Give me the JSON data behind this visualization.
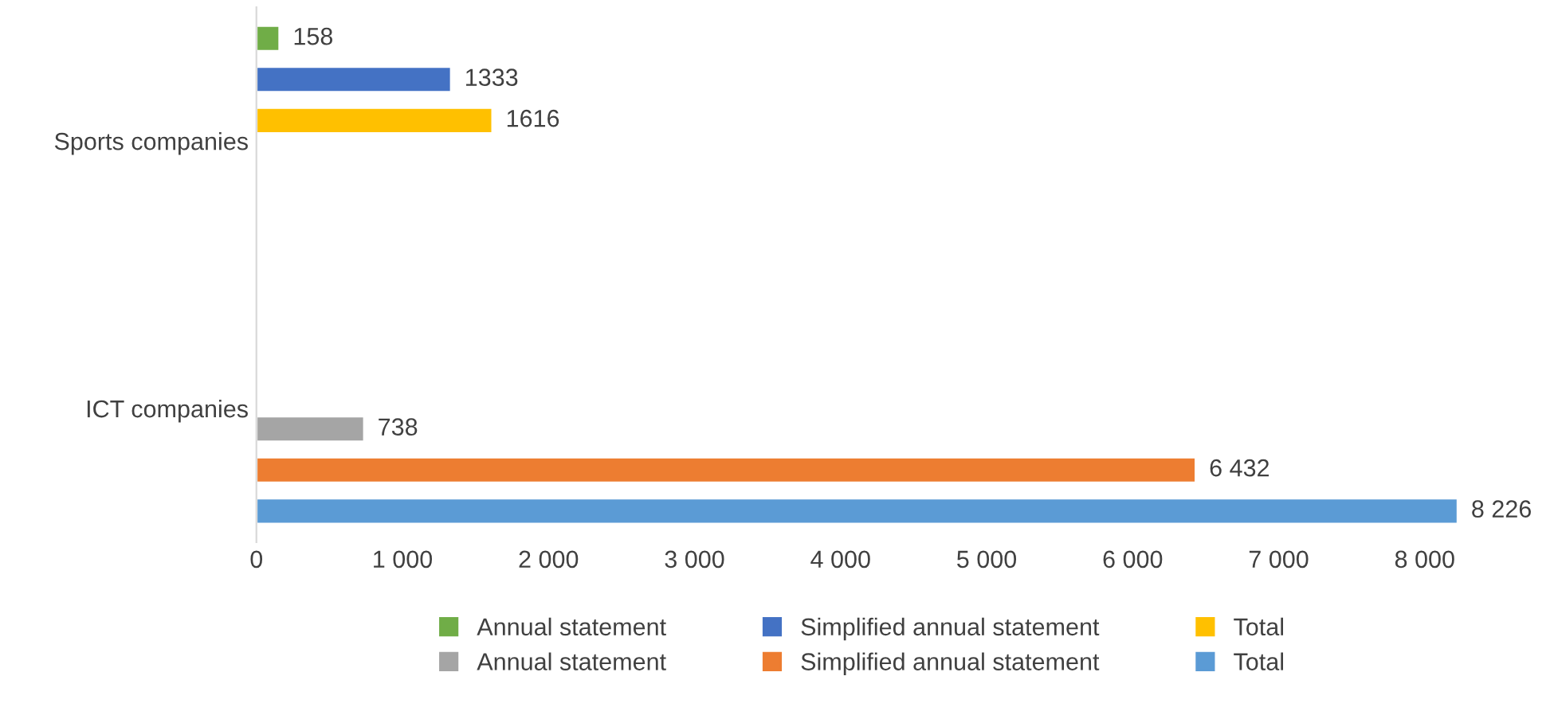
{
  "chart_data": {
    "type": "bar",
    "orientation": "horizontal",
    "categories": [
      "Sports companies",
      "ICT companies"
    ],
    "series": [
      {
        "name": "Annual statement",
        "color": "#70ad47",
        "values": [
          158,
          null
        ],
        "value_labels": [
          "158",
          null
        ]
      },
      {
        "name": "Simplified annual statement",
        "color": "#4472c4",
        "values": [
          1333,
          null
        ],
        "value_labels": [
          "1333",
          null
        ]
      },
      {
        "name": "Total",
        "color": "#ffc000",
        "values": [
          1616,
          null
        ],
        "value_labels": [
          "1616",
          null
        ]
      },
      {
        "name": "Annual statement",
        "color": "#a5a5a5",
        "values": [
          null,
          738
        ],
        "value_labels": [
          null,
          "738"
        ]
      },
      {
        "name": "Simplified annual statement",
        "color": "#ed7d31",
        "values": [
          null,
          6432
        ],
        "value_labels": [
          null,
          "6 432"
        ]
      },
      {
        "name": "Total",
        "color": "#5b9bd5",
        "values": [
          null,
          8226
        ],
        "value_labels": [
          null,
          "8 226"
        ]
      }
    ],
    "xlim": [
      0,
      8300
    ],
    "xticks": [
      0,
      {
        "value": 1000,
        "label": "1 000"
      },
      {
        "value": 2000,
        "label": "2 000"
      },
      {
        "value": 3000,
        "label": "3 000"
      },
      {
        "value": 4000,
        "label": "4 000"
      },
      {
        "value": 5000,
        "label": "5 000"
      },
      {
        "value": 6000,
        "label": "6 000"
      },
      {
        "value": 7000,
        "label": "7 000"
      },
      {
        "value": 8000,
        "label": "8 000"
      }
    ],
    "grid": false,
    "legend": "bottom"
  }
}
